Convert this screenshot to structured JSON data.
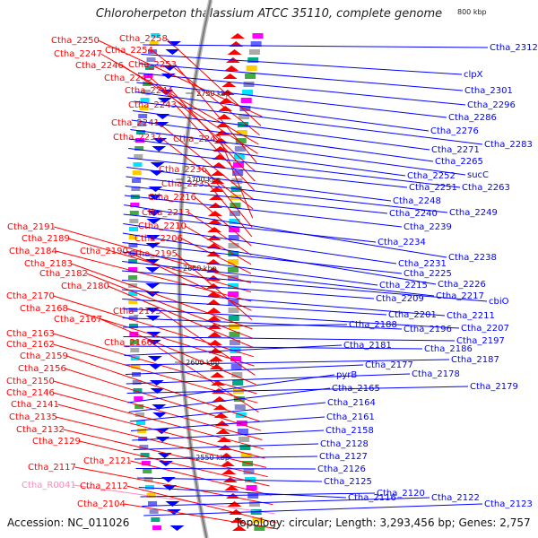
{
  "title": "Chloroherpeton thalassium ATCC 35110, complete genome",
  "footer": {
    "accession": "Accession: NC_011026",
    "summary": "Topology: circular; Length: 3,293,456 bp; Genes: 2,757"
  },
  "ruler": {
    "label_800": "800 kbp",
    "ticks": [
      "2750 kbp",
      "2700 kbp",
      "2650 kbp",
      "2600 kbp",
      "2550 kbp"
    ]
  },
  "colors": {
    "forward": "#ff0000",
    "reverse": "#0000ff",
    "rna": "#ff88bb",
    "backbone": "#888888"
  },
  "left_labels": [
    "Ctha_2250",
    "Ctha_2258",
    "Ctha_2254",
    "Ctha_2247",
    "Ctha_2246",
    "Ctha_2253",
    "Ctha_2245",
    "Ctha_2244",
    "Ctha_2243",
    "Ctha_2241",
    "Ctha_2237",
    "Ctha_2242",
    "Ctha_2236",
    "Ctha_2235",
    "Ctha_2216",
    "Ctha_2213",
    "Ctha_2210",
    "Ctha_2206",
    "Ctha_2191",
    "Ctha_2189",
    "Ctha_2184",
    "Ctha_2190",
    "Ctha_2195",
    "Ctha_2183",
    "Ctha_2182",
    "Ctha_2180",
    "Ctha_2170",
    "Ctha_2168",
    "Ctha_2175",
    "Ctha_2167",
    "Ctha_2163",
    "Ctha_2162",
    "Ctha_2166",
    "Ctha_2159",
    "Ctha_2156",
    "Ctha_2150",
    "Ctha_2146",
    "Ctha_2141",
    "Ctha_2135",
    "Ctha_2132",
    "Ctha_2129",
    "Ctha_2121",
    "Ctha_2117",
    "Ctha_R0041",
    "Ctha_2112",
    "Ctha_2104"
  ],
  "right_labels": [
    "Ctha_2312",
    "clpX",
    "Ctha_2301",
    "Ctha_2296",
    "Ctha_2286",
    "Ctha_2276",
    "Ctha_2283",
    "Ctha_2271",
    "Ctha_2265",
    "sucC",
    "Ctha_2252",
    "Ctha_2263",
    "Ctha_2251",
    "Ctha_2248",
    "Ctha_2249",
    "Ctha_2240",
    "Ctha_2239",
    "Ctha_2238",
    "Ctha_2234",
    "Ctha_2231",
    "Ctha_2226",
    "Ctha_2225",
    "Ctha_2215",
    "Ctha_2217",
    "cbiO",
    "Ctha_2209",
    "Ctha_2211",
    "Ctha_2201",
    "Ctha_2207",
    "Ctha_2196",
    "Ctha_2188",
    "Ctha_2197",
    "Ctha_2186",
    "Ctha_2181",
    "Ctha_2187",
    "Ctha_2177",
    "Ctha_2178",
    "Ctha_2179",
    "pyrB",
    "Ctha_2165",
    "Ctha_2164",
    "Ctha_2161",
    "Ctha_2158",
    "Ctha_2128",
    "Ctha_2127",
    "Ctha_2126",
    "Ctha_2125",
    "Ctha_2116",
    "Ctha_2120",
    "Ctha_2122",
    "Ctha_2123"
  ]
}
